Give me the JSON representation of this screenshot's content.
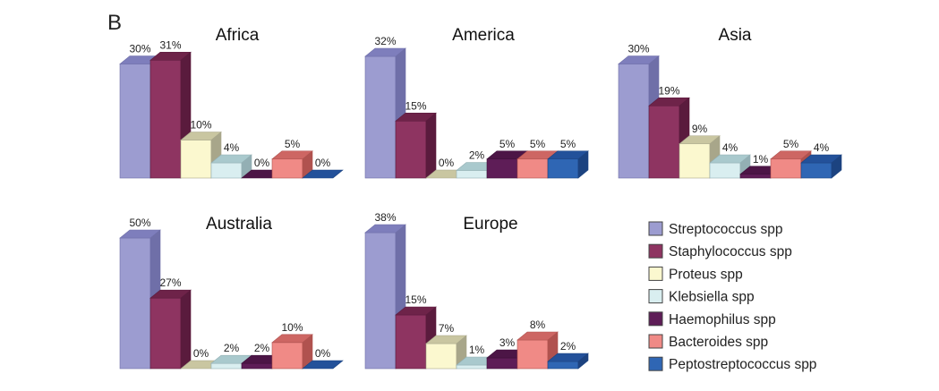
{
  "figure": {
    "panel_letter": "B",
    "legend": [
      {
        "name": "Streptococcus spp",
        "color": "#9C9CD0",
        "side": "#6F6FA8",
        "top": "#7E7EBC"
      },
      {
        "name": "Staphylococcus spp",
        "color": "#8E3461",
        "side": "#5A1B3D",
        "top": "#6E2349"
      },
      {
        "name": "Proteus spp",
        "color": "#FBF8CF",
        "side": "#A8A68A",
        "top": "#C9C6A1"
      },
      {
        "name": "Klebsiella spp",
        "color": "#D9EEF0",
        "side": "#93AFB4",
        "top": "#A9C9CD"
      },
      {
        "name": "Haemophilus spp",
        "color": "#5E1D57",
        "side": "#3C0F38",
        "top": "#4C1546"
      },
      {
        "name": "Bacteroides spp",
        "color": "#F08A86",
        "side": "#B0524F",
        "top": "#CD6663"
      },
      {
        "name": "Peptostreptococcus spp",
        "color": "#2F66B4",
        "side": "#1C4380",
        "top": "#23519A"
      }
    ]
  },
  "chart_data": [
    {
      "type": "bar",
      "title": "Africa",
      "categories": [
        "Streptococcus spp",
        "Staphylococcus spp",
        "Proteus spp",
        "Klebsiella spp",
        "Haemophilus spp",
        "Bacteroides spp",
        "Peptostreptococcus spp"
      ],
      "values": [
        30,
        31,
        10,
        4,
        0,
        5,
        0
      ],
      "labels": [
        "30%",
        "31%",
        "10%",
        "4%",
        "0%",
        "5%",
        "0%"
      ],
      "ylim": [
        0,
        50
      ]
    },
    {
      "type": "bar",
      "title": "America",
      "categories": [
        "Streptococcus spp",
        "Staphylococcus spp",
        "Proteus spp",
        "Klebsiella spp",
        "Haemophilus spp",
        "Bacteroides spp",
        "Peptostreptococcus spp"
      ],
      "values": [
        32,
        15,
        0,
        2,
        5,
        5,
        5
      ],
      "labels": [
        "32%",
        "15%",
        "0%",
        "2%",
        "5%",
        "5%",
        "5%"
      ],
      "ylim": [
        0,
        50
      ]
    },
    {
      "type": "bar",
      "title": "Asia",
      "categories": [
        "Streptococcus spp",
        "Staphylococcus spp",
        "Proteus spp",
        "Klebsiella spp",
        "Haemophilus spp",
        "Bacteroides spp",
        "Peptostreptococcus spp"
      ],
      "values": [
        30,
        19,
        9,
        4,
        1,
        5,
        4
      ],
      "labels": [
        "30%",
        "19%",
        "9%",
        "4%",
        "1%",
        "5%",
        "4%"
      ],
      "ylim": [
        0,
        50
      ]
    },
    {
      "type": "bar",
      "title": "Australia",
      "categories": [
        "Streptococcus spp",
        "Staphylococcus spp",
        "Proteus spp",
        "Klebsiella spp",
        "Haemophilus spp",
        "Bacteroides spp",
        "Peptostreptococcus spp"
      ],
      "values": [
        50,
        27,
        0,
        2,
        2,
        10,
        0
      ],
      "labels": [
        "50%",
        "27%",
        "0%",
        "2%",
        "2%",
        "10%",
        "0%"
      ],
      "ylim": [
        0,
        50
      ]
    },
    {
      "type": "bar",
      "title": "Europe",
      "categories": [
        "Streptococcus spp",
        "Staphylococcus spp",
        "Proteus spp",
        "Klebsiella spp",
        "Haemophilus spp",
        "Bacteroides spp",
        "Peptostreptococcus spp"
      ],
      "values": [
        38,
        15,
        7,
        1,
        3,
        8,
        2
      ],
      "labels": [
        "38%",
        "15%",
        "7%",
        "1%",
        "3%",
        "8%",
        "2%"
      ],
      "ylim": [
        0,
        50
      ]
    }
  ]
}
